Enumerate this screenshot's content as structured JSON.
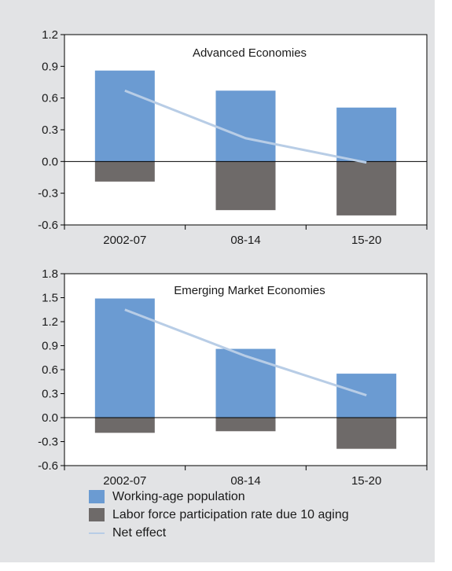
{
  "colors": {
    "background": "#e2e3e5",
    "working_age": "#6b9bd2",
    "participation": "#6e6a69",
    "net_effect": "#b8cde6"
  },
  "legend": {
    "working_age_label": "Working-age population",
    "participation_label": "Labor force participation rate due 10 aging",
    "net_effect_label": "Net effect"
  },
  "chart_data": [
    {
      "type": "bar",
      "title": "Advanced Economies",
      "categories": [
        "2002-07",
        "08-14",
        "15-20"
      ],
      "ylim": [
        -0.6,
        1.2
      ],
      "yticks": [
        "1.2",
        "0.9",
        "0.6",
        "0.3",
        "0.0",
        "-0.3",
        "-0.6"
      ],
      "ytick_values": [
        1.2,
        0.9,
        0.6,
        0.3,
        0.0,
        -0.3,
        -0.6
      ],
      "series": [
        {
          "name": "Working-age population",
          "kind": "bar",
          "values": [
            0.86,
            0.67,
            0.51
          ]
        },
        {
          "name": "Labor force participation rate due 10 aging",
          "kind": "bar",
          "values": [
            -0.19,
            -0.46,
            -0.51
          ]
        },
        {
          "name": "Net effect",
          "kind": "line",
          "values": [
            0.67,
            0.22,
            -0.01
          ]
        }
      ],
      "grid": false,
      "legend": "bottom"
    },
    {
      "type": "bar",
      "title": "Emerging Market Economies",
      "categories": [
        "2002-07",
        "08-14",
        "15-20"
      ],
      "ylim": [
        -0.6,
        1.8
      ],
      "yticks": [
        "1.8",
        "1.5",
        "1.2",
        "0.9",
        "0.6",
        "0.3",
        "0.0",
        "-0.3",
        "-0.6"
      ],
      "ytick_values": [
        1.8,
        1.5,
        1.2,
        0.9,
        0.6,
        0.3,
        0.0,
        -0.3,
        -0.6
      ],
      "series": [
        {
          "name": "Working-age population",
          "kind": "bar",
          "values": [
            1.49,
            0.86,
            0.55
          ]
        },
        {
          "name": "Labor force participation rate due 10 aging",
          "kind": "bar",
          "values": [
            -0.19,
            -0.17,
            -0.39
          ]
        },
        {
          "name": "Net effect",
          "kind": "line",
          "values": [
            1.35,
            0.77,
            0.28
          ]
        }
      ],
      "grid": false,
      "legend": "bottom"
    }
  ]
}
